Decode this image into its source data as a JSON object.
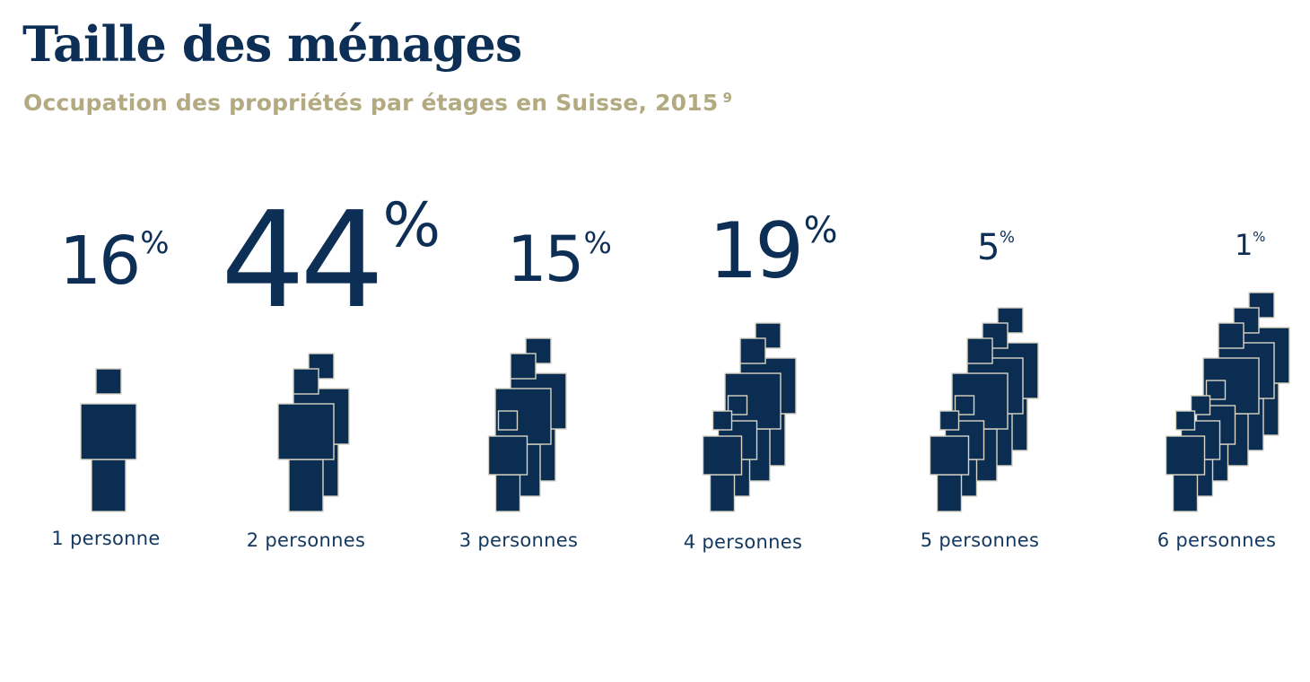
{
  "header": {
    "title": "Taille des ménages",
    "subtitle": "Occupation des propriétés par étages en Suisse, 2015",
    "footnote": "9"
  },
  "colors": {
    "title": "#0e2f55",
    "subtitle": "#b3aa82",
    "figure_fill": "#0b2d52",
    "figure_outline": "#d9d4c4"
  },
  "chart_data": {
    "type": "pictogram",
    "title": "Taille des ménages",
    "subtitle": "Occupation des propriétés par étages en Suisse, 2015",
    "unit": "%",
    "categories": [
      "1 personne",
      "2 personnes",
      "3 personnes",
      "4 personnes",
      "5 personnes",
      "6 personnes"
    ],
    "values": [
      16,
      44,
      15,
      19,
      5,
      1
    ],
    "groups": [
      {
        "label": "1 personne",
        "value": 16,
        "value_text": "16",
        "adults": 1,
        "children": 0
      },
      {
        "label": "2 personnes",
        "value": 44,
        "value_text": "44",
        "adults": 2,
        "children": 0
      },
      {
        "label": "3 personnes",
        "value": 15,
        "value_text": "15",
        "adults": 2,
        "children": 1
      },
      {
        "label": "4 personnes",
        "value": 19,
        "value_text": "19",
        "adults": 2,
        "children": 2
      },
      {
        "label": "5 personnes",
        "value": 5,
        "value_text": "5",
        "adults": 3,
        "children": 2
      },
      {
        "label": "6 personnes",
        "value": 1,
        "value_text": "1",
        "adults": 3,
        "children": 3
      }
    ]
  }
}
